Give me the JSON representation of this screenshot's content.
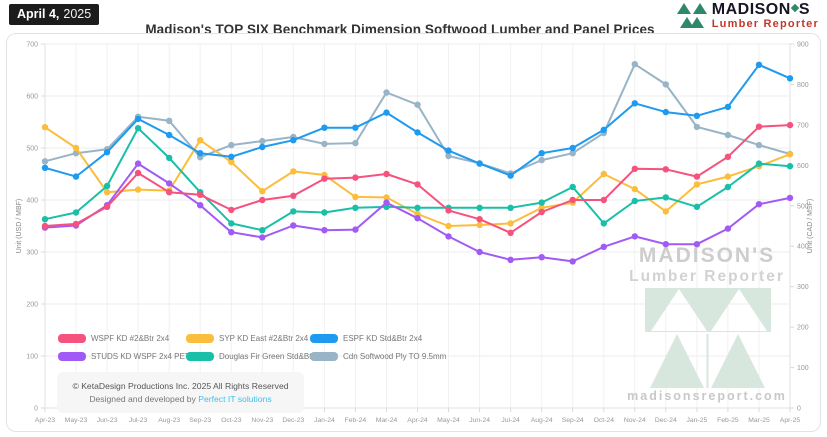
{
  "header": {
    "date_badge": {
      "bold": "April 4,",
      "year": "2025"
    },
    "title": "Madison's TOP SIX Benchmark Dimension Softwood Lumber and Panel Prices",
    "logo": {
      "brand_left": "MADISON",
      "brand_right": "S",
      "subtitle": "Lumber Reporter"
    }
  },
  "chart_data": {
    "type": "line",
    "x": [
      "Apr-23",
      "May-23",
      "Jun-23",
      "Jul-23",
      "Aug-23",
      "Sep-23",
      "Oct-23",
      "Nov-23",
      "Dec-23",
      "Jan-24",
      "Feb-24",
      "Mar-24",
      "Apr-24",
      "May-24",
      "Jun-24",
      "Jul-24",
      "Aug-24",
      "Sep-24",
      "Oct-24",
      "Nov-24",
      "Dec-24",
      "Jan-25",
      "Feb-25",
      "Mar-25",
      "Apr-25"
    ],
    "series": [
      {
        "name": "WSPF KD #2&Btr 2x4",
        "color": "#f5527d",
        "axis": "left",
        "values": [
          350,
          354,
          387,
          452,
          415,
          410,
          381,
          400,
          408,
          441,
          443,
          450,
          430,
          380,
          363,
          337,
          377,
          400,
          400,
          460,
          459,
          445,
          483,
          541,
          544
        ]
      },
      {
        "name": "SYP KD East #2&Btr 2x4",
        "color": "#fbbd3c",
        "axis": "left",
        "values": [
          540,
          500,
          415,
          420,
          418,
          515,
          473,
          417,
          455,
          448,
          406,
          405,
          373,
          350,
          352,
          355,
          385,
          395,
          450,
          421,
          378,
          430,
          445,
          465,
          488
        ]
      },
      {
        "name": "ESPF KD Std&Btr 2x4",
        "color": "#1e9af0",
        "axis": "left",
        "values": [
          462,
          445,
          492,
          556,
          525,
          490,
          483,
          502,
          515,
          539,
          539,
          568,
          530,
          495,
          470,
          447,
          490,
          500,
          535,
          586,
          569,
          562,
          579,
          660,
          634
        ]
      },
      {
        "name": "STUDS KD WSPF 2x4 PET",
        "color": "#a25af6",
        "axis": "left",
        "values": [
          347,
          351,
          390,
          470,
          432,
          390,
          338,
          328,
          351,
          342,
          343,
          395,
          365,
          330,
          300,
          285,
          290,
          282,
          310,
          330,
          315,
          315,
          345,
          392,
          404
        ]
      },
      {
        "name": "Douglas Fir Green Std&Btr 2x4",
        "color": "#19bfa8",
        "axis": "left",
        "values": [
          363,
          376,
          427,
          538,
          481,
          415,
          355,
          342,
          378,
          376,
          385,
          387,
          385,
          385,
          385,
          385,
          395,
          425,
          355,
          398,
          405,
          387,
          425,
          470,
          465
        ]
      },
      {
        "name": "Cdn Softwood Ply TO 9.5mm",
        "color": "#98b4c6",
        "axis": "right",
        "values": [
          610,
          630,
          640,
          720,
          710,
          620,
          650,
          660,
          670,
          653,
          655,
          780,
          750,
          623,
          605,
          580,
          613,
          630,
          680,
          850,
          800,
          695,
          675,
          650,
          628
        ]
      }
    ],
    "left_axis": {
      "label": "Unit (USD / MBF)",
      "min": 0,
      "max": 700,
      "step": 100
    },
    "right_axis": {
      "label": "Unit (CAD / MSF)",
      "min": 0,
      "max": 900,
      "step": 100
    },
    "grid": true,
    "legend_position": "bottom-left",
    "title": "Madison's TOP SIX Benchmark Dimension Softwood Lumber and Panel Prices"
  },
  "watermark": {
    "line1": "MADISON'S",
    "line2": "Lumber Reporter",
    "site": "madisonsreport.com"
  },
  "footer": {
    "copyright": "© KetaDesign Productions Inc. 2025 All Rights Reserved",
    "designed_prefix": "Designed and developed by",
    "designed_link": "Perfect IT solutions"
  }
}
